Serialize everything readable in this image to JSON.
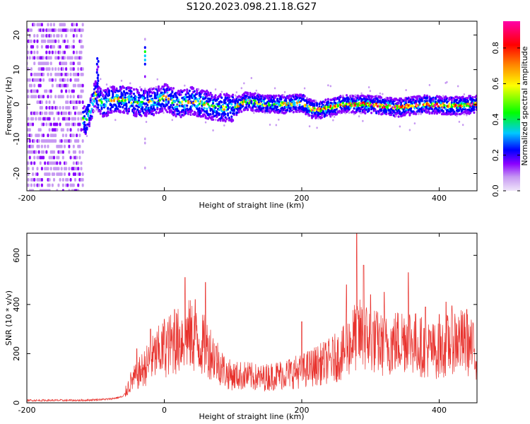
{
  "title": "S120.2023.098.21.18.G27",
  "colors": {
    "snr_line": "#e8322d",
    "axis": "#000000",
    "colorbar": [
      "#f0e6fa",
      "#c79af2",
      "#8a00ff",
      "#0000ff",
      "#00c8ff",
      "#00ff00",
      "#ffff00",
      "#ff8800",
      "#ff0000",
      "#ff00aa"
    ]
  },
  "chart_data": [
    {
      "type": "heatmap",
      "title": "",
      "xlabel": "Height of straight line (km)",
      "ylabel": "Frequency (Hz)",
      "xlim": [
        -200,
        455
      ],
      "ylim": [
        -25,
        24
      ],
      "xticks": [
        -200,
        0,
        200,
        400
      ],
      "yticks": [
        -20,
        -10,
        0,
        10,
        20
      ],
      "xtick_labels": [
        "-200",
        "0",
        "200",
        "400"
      ],
      "ytick_labels": [
        "-20",
        "-10",
        "0",
        "10",
        "20"
      ],
      "colorbar": {
        "label": "Normalized spectral amplitude",
        "range": [
          0,
          0.95
        ],
        "ticks": [
          0,
          0.2,
          0.4,
          0.6,
          0.8
        ],
        "tick_labels": [
          "0.0",
          "0.2",
          "0.4",
          "0.6",
          "0.8"
        ]
      },
      "ridge": {
        "x": [
          -200,
          -140,
          -125,
          -115,
          -110,
          -100,
          -90,
          -80,
          -60,
          -40,
          -25,
          -10,
          0,
          20,
          40,
          60,
          80,
          100,
          120,
          150,
          180,
          200,
          215,
          230,
          260,
          300,
          340,
          380,
          420,
          455
        ],
        "y": [
          0,
          0,
          -2,
          -5,
          -3,
          3,
          0,
          1,
          1.5,
          0.5,
          0.5,
          1,
          2,
          0,
          1,
          0,
          -1,
          -1,
          1,
          0,
          0,
          0.5,
          -1.5,
          -1.5,
          0,
          0,
          -1,
          0,
          -0.5,
          0
        ]
      },
      "grid": false
    },
    {
      "type": "line",
      "title": "",
      "xlabel": "Height of straight line (km)",
      "ylabel": "SNR (10 * v/v)",
      "xlim": [
        -200,
        455
      ],
      "ylim": [
        0,
        690
      ],
      "xticks": [
        -200,
        0,
        200,
        400
      ],
      "yticks": [
        0,
        200,
        400,
        600
      ],
      "xtick_labels": [
        "-200",
        "0",
        "200",
        "400"
      ],
      "ytick_labels": [
        "0",
        "200",
        "400",
        "600"
      ],
      "series": [
        {
          "x": [
            -200,
            -160,
            -120,
            -80,
            -60,
            -55,
            -50,
            -40,
            -30,
            -20,
            -10,
            0,
            10,
            20,
            30,
            40,
            50,
            60,
            70,
            80,
            90,
            100,
            120,
            140,
            160,
            180,
            200,
            220,
            240,
            260,
            270,
            280,
            290,
            300,
            320,
            340,
            355,
            360,
            380,
            400,
            410,
            420,
            440,
            455
          ],
          "y": [
            10,
            10,
            10,
            15,
            25,
            50,
            80,
            110,
            140,
            170,
            200,
            220,
            240,
            250,
            280,
            270,
            240,
            230,
            200,
            160,
            120,
            110,
            110,
            100,
            110,
            120,
            130,
            150,
            170,
            200,
            240,
            280,
            270,
            260,
            230,
            250,
            270,
            250,
            220,
            210,
            230,
            260,
            240,
            200
          ],
          "peaks": {
            "x": [
              -40,
              -20,
              0,
              15,
              30,
              45,
              60,
              200,
              265,
              280,
              290,
              300,
              320,
              355,
              380,
              400,
              410,
              440
            ],
            "y": [
              220,
              300,
              340,
              380,
              510,
              420,
              490,
              330,
              480,
              690,
              560,
              440,
              450,
              530,
              390,
              360,
              410,
              380
            ]
          }
        }
      ],
      "grid": false
    }
  ]
}
